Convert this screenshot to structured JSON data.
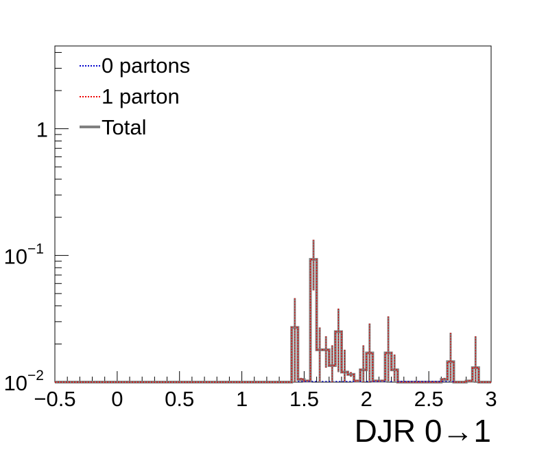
{
  "chart_data": {
    "type": "histogram",
    "xlabel": "DJR 0→1",
    "ylabel": "",
    "xlim": [
      -0.5,
      3.0
    ],
    "ylim": [
      0.01,
      4.5
    ],
    "yscale": "log",
    "grid": false,
    "legend_position": "top-left",
    "x_ticks": [
      {
        "value": -0.5,
        "label": "−0.5"
      },
      {
        "value": 0,
        "label": "0"
      },
      {
        "value": 0.5,
        "label": "0.5"
      },
      {
        "value": 1,
        "label": "1"
      },
      {
        "value": 1.5,
        "label": "1.5"
      },
      {
        "value": 2,
        "label": "2"
      },
      {
        "value": 2.5,
        "label": "2.5"
      },
      {
        "value": 3,
        "label": "3"
      }
    ],
    "y_ticks": [
      {
        "value": 0.01,
        "base": "10",
        "exp": "−2"
      },
      {
        "value": 0.1,
        "base": "10",
        "exp": "−1"
      },
      {
        "value": 1,
        "base": "1",
        "exp": ""
      }
    ],
    "bin_width": 0.05,
    "bins": [
      {
        "x": 1.4,
        "value": 0.027,
        "err": 0.019
      },
      {
        "x": 1.45,
        "value": 0.0105,
        "err": 0.0003
      },
      {
        "x": 1.5,
        "value": 0.0102,
        "err": 0.0002
      },
      {
        "x": 1.55,
        "value": 0.093,
        "err": 0.04
      },
      {
        "x": 1.6,
        "value": 0.018,
        "err": 0.009
      },
      {
        "x": 1.65,
        "value": 0.018,
        "err": 0.005
      },
      {
        "x": 1.7,
        "value": 0.0135,
        "err": 0.006
      },
      {
        "x": 1.75,
        "value": 0.025,
        "err": 0.013
      },
      {
        "x": 1.8,
        "value": 0.012,
        "err": 0.006
      },
      {
        "x": 1.85,
        "value": 0.0115,
        "err": 0.0005
      },
      {
        "x": 1.9,
        "value": 0.0102,
        "err": 0.0002
      },
      {
        "x": 1.95,
        "value": 0.0125,
        "err": 0.007
      },
      {
        "x": 2.0,
        "value": 0.017,
        "err": 0.012
      },
      {
        "x": 2.05,
        "value": 0.0102,
        "err": 0.0002
      },
      {
        "x": 2.1,
        "value": 0.0102,
        "err": 0.0002
      },
      {
        "x": 2.15,
        "value": 0.017,
        "err": 0.016
      },
      {
        "x": 2.2,
        "value": 0.0125,
        "err": 0.004
      },
      {
        "x": 2.6,
        "value": 0.0105,
        "err": 0.0003
      },
      {
        "x": 2.65,
        "value": 0.0145,
        "err": 0.01
      },
      {
        "x": 2.8,
        "value": 0.0102,
        "err": 0.0002
      },
      {
        "x": 2.85,
        "value": 0.013,
        "err": 0.01
      }
    ],
    "series": [
      {
        "name": "0 partons",
        "color": "#0000cc",
        "style": "dotted"
      },
      {
        "name": "1 parton",
        "color": "#ee0000",
        "style": "dotted"
      },
      {
        "name": "Total",
        "color": "#808080",
        "style": "solid"
      }
    ]
  }
}
